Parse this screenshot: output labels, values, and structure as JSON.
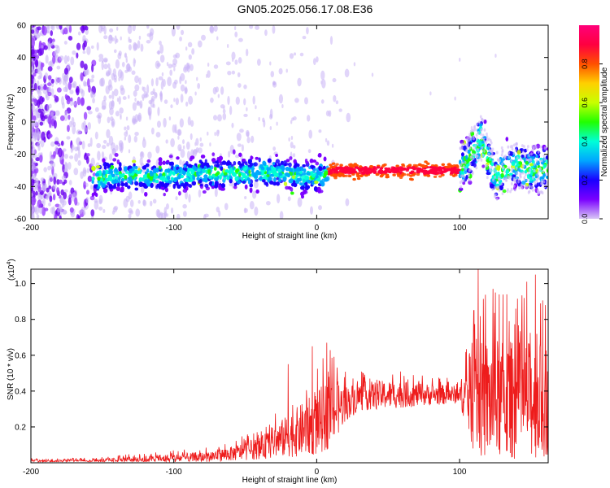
{
  "title": "GN05.2025.056.17.08.E36",
  "chart_data": [
    {
      "type": "heatmap",
      "xlabel": "Height of straight line (km)",
      "ylabel": "Frequency (Hz)",
      "xlim": [
        -200,
        162
      ],
      "ylim": [
        -60,
        60
      ],
      "xticks": [
        -200,
        -100,
        0,
        100
      ],
      "yticks": [
        -60,
        -40,
        -20,
        0,
        20,
        40,
        60
      ],
      "colorbar": {
        "label": "Normalized spectral amplitude",
        "range": [
          0,
          1
        ],
        "ticks": [
          "0.0",
          "0.2",
          "0.4",
          "0.6",
          "0.8"
        ],
        "colors": [
          "#d8c6f5",
          "#7a00ff",
          "#1a00ff",
          "#00a6ff",
          "#00ffd8",
          "#21ff00",
          "#c8ff00",
          "#ffd000",
          "#ff5000",
          "#ff0040",
          "#ff007a"
        ]
      },
      "ridge": {
        "x": [
          -155,
          -140,
          -120,
          -100,
          -80,
          -60,
          -40,
          -20,
          -5,
          5,
          12,
          30,
          60,
          90,
          100,
          105,
          110,
          115,
          120,
          125,
          130,
          140,
          150,
          162
        ],
        "y": [
          -35,
          -33,
          -34,
          -33,
          -32,
          -32,
          -31,
          -32,
          -34,
          -33,
          -30,
          -30,
          -30,
          -30,
          -30,
          -24,
          -18,
          -10,
          -22,
          -34,
          -30,
          -27,
          -30,
          -29
        ]
      }
    },
    {
      "type": "line",
      "xlabel": "Height of straight line (km)",
      "ylabel": "SNR (10 * v/v)",
      "yscale_label": "(x10",
      "yscale_exp": "4",
      "xlim": [
        -200,
        162
      ],
      "ylim": [
        0,
        1.08
      ],
      "xticks": [
        -200,
        -100,
        0,
        100
      ],
      "yticks": [
        0.2,
        0.4,
        0.6,
        0.8,
        1.0
      ],
      "series_color": "#ee1c1c",
      "envelope": {
        "x": [
          -200,
          -160,
          -120,
          -80,
          -60,
          -40,
          -20,
          0,
          10,
          20,
          30,
          50,
          80,
          100,
          110,
          120,
          140,
          162
        ],
        "base": [
          0.01,
          0.01,
          0.02,
          0.03,
          0.05,
          0.08,
          0.15,
          0.22,
          0.28,
          0.33,
          0.37,
          0.38,
          0.38,
          0.38,
          0.35,
          0.35,
          0.35,
          0.35
        ],
        "amp": [
          0.01,
          0.01,
          0.02,
          0.03,
          0.04,
          0.06,
          0.12,
          0.18,
          0.2,
          0.1,
          0.08,
          0.08,
          0.06,
          0.05,
          0.3,
          0.35,
          0.33,
          0.33
        ],
        "peaks_x": [
          -20,
          -3,
          7,
          110,
          113,
          125,
          133,
          147,
          153,
          160
        ],
        "peaks_y": [
          0.55,
          0.65,
          0.67,
          0.85,
          1.08,
          0.95,
          0.94,
          1.01,
          1.05,
          0.88
        ]
      }
    }
  ]
}
